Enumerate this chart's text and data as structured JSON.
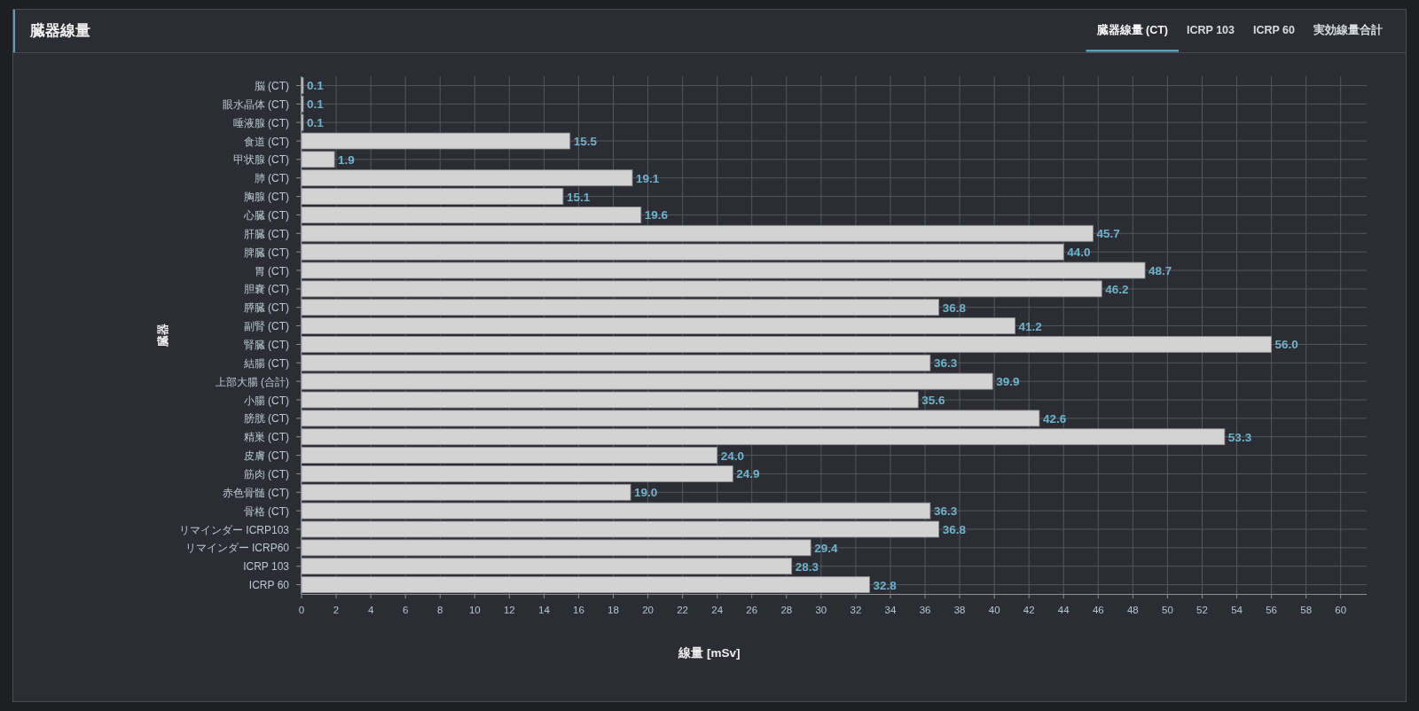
{
  "chart_data": {
    "type": "bar",
    "orientation": "horizontal",
    "title": "臓器線量",
    "xlabel": "線量 [mSv]",
    "ylabel": "臓器",
    "annotations": [
      "臓器線量 (CT)",
      "ICRP 103",
      "ICRP 60",
      "実効線量合計"
    ],
    "categories": [
      "脳 (CT)",
      "眼水晶体 (CT)",
      "唾液腺 (CT)",
      "食道 (CT)",
      "甲状腺 (CT)",
      "肺 (CT)",
      "胸腺 (CT)",
      "心臓 (CT)",
      "肝臓 (CT)",
      "脾臓 (CT)",
      "胃 (CT)",
      "胆嚢 (CT)",
      "膵臓 (CT)",
      "副腎 (CT)",
      "腎臓 (CT)",
      "結腸 (CT)",
      "上部大腸 (合計)",
      "小腸 (CT)",
      "膀胱 (CT)",
      "精巣 (CT)",
      "皮膚 (CT)",
      "筋肉 (CT)",
      "赤色骨髄 (CT)",
      "骨格 (CT)",
      "リマインダー ICRP103",
      "リマインダー ICRP60",
      "ICRP 103",
      "ICRP 60"
    ],
    "values": [
      0.1,
      0.1,
      0.1,
      15.5,
      1.9,
      19.1,
      15.1,
      19.6,
      45.7,
      44.0,
      48.7,
      46.2,
      36.8,
      41.2,
      56.0,
      36.3,
      39.9,
      35.6,
      42.6,
      53.3,
      24.0,
      24.9,
      19.0,
      36.3,
      36.8,
      29.4,
      28.3,
      32.8
    ],
    "value_labels": [
      "0.1",
      "0.1",
      "0.1",
      "15.5",
      "1.9",
      "19.1",
      "15.1",
      "19.6",
      "45.7",
      "44.0",
      "48.7",
      "46.2",
      "36.8",
      "41.2",
      "56.0",
      "36.3",
      "39.9",
      "35.6",
      "42.6",
      "53.3",
      "24.0",
      "24.9",
      "19.0",
      "36.3",
      "36.8",
      "29.4",
      "28.3",
      "32.8"
    ],
    "color": "#d3d3d3",
    "xlim": [
      0,
      61.5
    ],
    "xticks": [
      0,
      2,
      4,
      6,
      8,
      10,
      12,
      14,
      16,
      18,
      20,
      22,
      24,
      26,
      28,
      30,
      32,
      34,
      36,
      38,
      40,
      42,
      44,
      46,
      48,
      50,
      52,
      54,
      56,
      58,
      60
    ],
    "grid": true
  }
}
